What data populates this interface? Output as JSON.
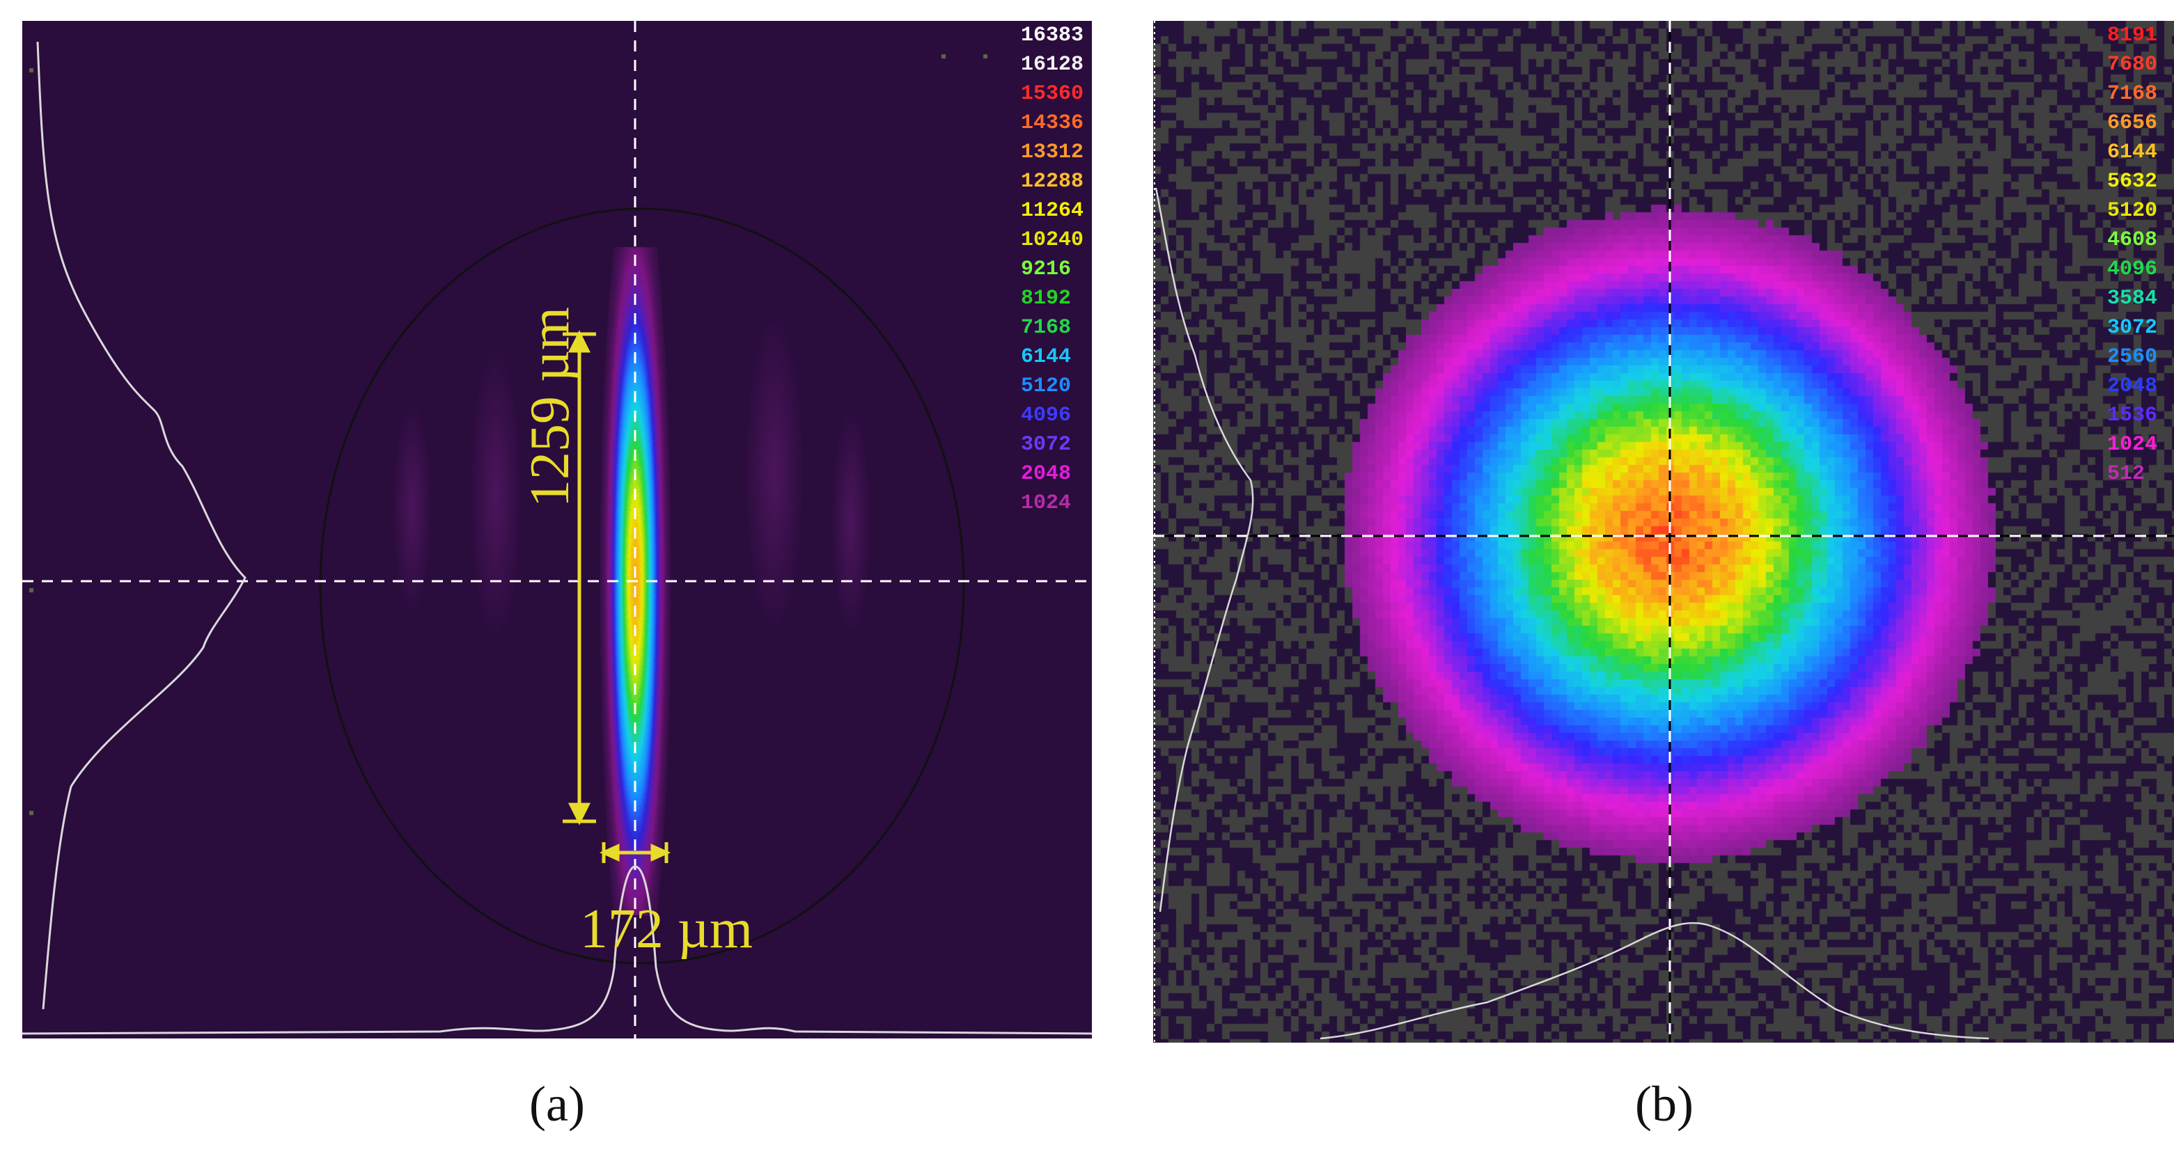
{
  "figure": {
    "panels": [
      {
        "id": "a",
        "caption": "(a)",
        "colorbar_labels": [
          "16383",
          "16128",
          "15360",
          "14336",
          "13312",
          "12288",
          "11264",
          "10240",
          "9216",
          "8192",
          "7168",
          "6144",
          "5120",
          "4096",
          "3072",
          "2048",
          "1024"
        ],
        "colorbar_colors": [
          "#ffffff",
          "#f2f2f2",
          "#ff2b2b",
          "#ff6a2a",
          "#ff9a2a",
          "#ffbf2a",
          "#f4f000",
          "#e8e800",
          "#79ff3c",
          "#1fd61f",
          "#22d84a",
          "#16c8ff",
          "#1e8dff",
          "#3a3cff",
          "#6a3bff",
          "#e01ed9",
          "#b42ca8"
        ],
        "measurements": {
          "vertical": "1259 µm",
          "horizontal": "172 µm"
        },
        "beam_shape": "elongated-ellipse"
      },
      {
        "id": "b",
        "caption": "(b)",
        "colorbar_labels": [
          "8191",
          "7680",
          "7168",
          "6656",
          "6144",
          "5632",
          "5120",
          "4608",
          "4096",
          "3584",
          "3072",
          "2560",
          "2048",
          "1536",
          "1024",
          "512"
        ],
        "colorbar_colors": [
          "#ff1f1f",
          "#ff3a2a",
          "#ff6a2a",
          "#ff9a2a",
          "#ffc21f",
          "#f4f000",
          "#e8e800",
          "#79ff3c",
          "#22d84a",
          "#18e0a8",
          "#16c8ff",
          "#1e8dff",
          "#2a3cff",
          "#5a2cff",
          "#ff1ed6",
          "#c02cb4"
        ],
        "beam_shape": "circular"
      }
    ],
    "style": {
      "annotation_color": "#e8dc2a",
      "profile_color": "#d9d9d9",
      "crosshair_color": "#ffffff"
    }
  }
}
